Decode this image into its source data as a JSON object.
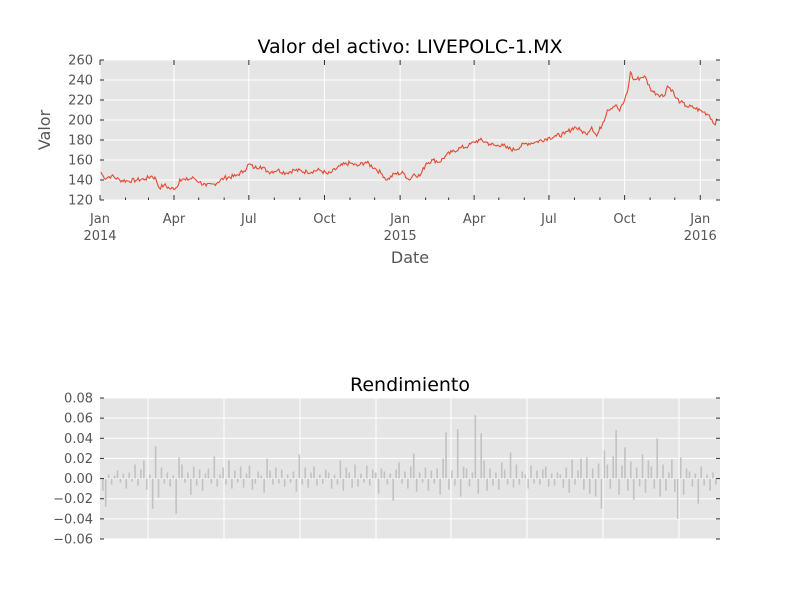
{
  "colors": {
    "plot_background": "#e5e5e5",
    "grid": "#ffffff",
    "price_line": "#e24a33",
    "returns_bar": "#c2c2c2",
    "tick_text": "#555555",
    "title_text": "#000000"
  },
  "chart_data": [
    {
      "type": "line",
      "title": "Valor del activo: LIVEPOLC-1.MX",
      "xlabel": "Date",
      "ylabel": "Valor",
      "xlim": [
        "2014-01-01",
        "2016-01-25"
      ],
      "ylim": [
        120,
        260
      ],
      "grid": true,
      "y_ticks": [
        "120",
        "140",
        "160",
        "180",
        "200",
        "220",
        "240",
        "260"
      ],
      "x_ticks": [
        {
          "date": "2014-01-01",
          "label": "Jan",
          "sublabel": "2014"
        },
        {
          "date": "2014-04-01",
          "label": "Apr",
          "sublabel": ""
        },
        {
          "date": "2014-07-01",
          "label": "Jul",
          "sublabel": ""
        },
        {
          "date": "2014-10-01",
          "label": "Oct",
          "sublabel": ""
        },
        {
          "date": "2015-01-01",
          "label": "Jan",
          "sublabel": "2015"
        },
        {
          "date": "2015-04-01",
          "label": "Apr",
          "sublabel": ""
        },
        {
          "date": "2015-07-01",
          "label": "Jul",
          "sublabel": ""
        },
        {
          "date": "2015-10-01",
          "label": "Oct",
          "sublabel": ""
        },
        {
          "date": "2016-01-01",
          "label": "Jan",
          "sublabel": "2016"
        }
      ],
      "series": [
        {
          "name": "",
          "points": [
            [
              "2014-01-02",
              148
            ],
            [
              "2014-01-06",
              142
            ],
            [
              "2014-01-15",
              144
            ],
            [
              "2014-01-25",
              140
            ],
            [
              "2014-02-05",
              139
            ],
            [
              "2014-02-15",
              140
            ],
            [
              "2014-02-25",
              141
            ],
            [
              "2014-03-05",
              144
            ],
            [
              "2014-03-10",
              141
            ],
            [
              "2014-03-14",
              132
            ],
            [
              "2014-03-20",
              135
            ],
            [
              "2014-03-28",
              131
            ],
            [
              "2014-04-05",
              133
            ],
            [
              "2014-04-08",
              141
            ],
            [
              "2014-04-15",
              140
            ],
            [
              "2014-04-25",
              142
            ],
            [
              "2014-05-02",
              138
            ],
            [
              "2014-05-10",
              134
            ],
            [
              "2014-05-20",
              136
            ],
            [
              "2014-06-01",
              142
            ],
            [
              "2014-06-15",
              144
            ],
            [
              "2014-06-25",
              149
            ],
            [
              "2014-07-01",
              156
            ],
            [
              "2014-07-08",
              152
            ],
            [
              "2014-07-15",
              154
            ],
            [
              "2014-07-25",
              148
            ],
            [
              "2014-08-05",
              150
            ],
            [
              "2014-08-15",
              147
            ],
            [
              "2014-08-25",
              150
            ],
            [
              "2014-09-10",
              148
            ],
            [
              "2014-09-25",
              150
            ],
            [
              "2014-10-05",
              146
            ],
            [
              "2014-10-10",
              148
            ],
            [
              "2014-10-20",
              154
            ],
            [
              "2014-11-01",
              157
            ],
            [
              "2014-11-10",
              154
            ],
            [
              "2014-11-20",
              158
            ],
            [
              "2014-12-01",
              152
            ],
            [
              "2014-12-10",
              146
            ],
            [
              "2014-12-16",
              140
            ],
            [
              "2014-12-25",
              146
            ],
            [
              "2015-01-05",
              147
            ],
            [
              "2015-01-12",
              140
            ],
            [
              "2015-01-18",
              146
            ],
            [
              "2015-01-25",
              144
            ],
            [
              "2015-02-02",
              157
            ],
            [
              "2015-02-10",
              160
            ],
            [
              "2015-02-18",
              158
            ],
            [
              "2015-02-25",
              164
            ],
            [
              "2015-03-05",
              168
            ],
            [
              "2015-03-15",
              172
            ],
            [
              "2015-03-25",
              174
            ],
            [
              "2015-04-01",
              178
            ],
            [
              "2015-04-08",
              180
            ],
            [
              "2015-04-15",
              178
            ],
            [
              "2015-04-20",
              176
            ],
            [
              "2015-04-28",
              174
            ],
            [
              "2015-05-05",
              176
            ],
            [
              "2015-05-10",
              172
            ],
            [
              "2015-05-20",
              170
            ],
            [
              "2015-06-01",
              176
            ],
            [
              "2015-06-15",
              178
            ],
            [
              "2015-06-30",
              182
            ],
            [
              "2015-07-10",
              184
            ],
            [
              "2015-07-20",
              186
            ],
            [
              "2015-08-01",
              193
            ],
            [
              "2015-08-08",
              190
            ],
            [
              "2015-08-15",
              186
            ],
            [
              "2015-08-22",
              193
            ],
            [
              "2015-08-28",
              184
            ],
            [
              "2015-09-05",
              198
            ],
            [
              "2015-09-10",
              210
            ],
            [
              "2015-09-20",
              215
            ],
            [
              "2015-09-25",
              209
            ],
            [
              "2015-10-01",
              220
            ],
            [
              "2015-10-05",
              230
            ],
            [
              "2015-10-08",
              248
            ],
            [
              "2015-10-12",
              240
            ],
            [
              "2015-10-20",
              242
            ],
            [
              "2015-10-25",
              244
            ],
            [
              "2015-11-01",
              232
            ],
            [
              "2015-11-05",
              228
            ],
            [
              "2015-11-10",
              226
            ],
            [
              "2015-11-18",
              224
            ],
            [
              "2015-11-22",
              234
            ],
            [
              "2015-11-28",
              230
            ],
            [
              "2015-12-02",
              222
            ],
            [
              "2015-12-08",
              218
            ],
            [
              "2015-12-15",
              214
            ],
            [
              "2015-12-25",
              212
            ],
            [
              "2016-01-05",
              208
            ],
            [
              "2016-01-12",
              205
            ],
            [
              "2016-01-18",
              196
            ],
            [
              "2016-01-22",
              200
            ]
          ]
        }
      ]
    },
    {
      "type": "bar",
      "title": "Rendimiento",
      "xlabel": "",
      "ylabel": "",
      "xlim": [
        "2014-01-01",
        "2016-01-25"
      ],
      "ylim": [
        -0.06,
        0.08
      ],
      "grid": true,
      "y_ticks": [
        "−0.06",
        "−0.04",
        "−0.02",
        "0.00",
        "0.02",
        "0.04",
        "0.06",
        "0.08"
      ],
      "x_ticks": [],
      "values": [
        -0.012,
        -0.028,
        0.004,
        -0.006,
        0.003,
        0.008,
        -0.004,
        0.005,
        -0.01,
        0.006,
        -0.003,
        0.014,
        -0.007,
        0.009,
        0.018,
        -0.011,
        0.004,
        -0.03,
        0.032,
        -0.019,
        0.011,
        -0.005,
        0.006,
        -0.008,
        0.003,
        -0.035,
        0.021,
        0.014,
        -0.004,
        0.006,
        -0.016,
        0.012,
        -0.007,
        0.009,
        -0.012,
        0.005,
        0.01,
        -0.005,
        0.022,
        -0.008,
        0.004,
        0.011,
        -0.006,
        0.018,
        -0.01,
        0.008,
        -0.004,
        0.012,
        -0.009,
        0.005,
        0.013,
        -0.011,
        -0.005,
        0.007,
        0.003,
        -0.014,
        0.02,
        0.008,
        -0.006,
        0.011,
        -0.005,
        0.009,
        -0.008,
        0.004,
        -0.004,
        0.007,
        -0.013,
        0.024,
        -0.006,
        0.011,
        -0.009,
        0.006,
        0.012,
        -0.007,
        0.004,
        -0.005,
        0.009,
        0.006,
        -0.01,
        0.004,
        -0.006,
        0.018,
        -0.012,
        0.011,
        0.006,
        -0.009,
        0.014,
        -0.008,
        0.005,
        -0.004,
        0.013,
        -0.007,
        0.009,
        0.006,
        -0.015,
        0.01,
        0.007,
        -0.006,
        0.005,
        -0.022,
        0.009,
        0.016,
        -0.005,
        0.007,
        -0.01,
        0.012,
        0.025,
        -0.013,
        0.006,
        -0.004,
        0.011,
        -0.012,
        0.008,
        -0.005,
        0.01,
        -0.016,
        0.02,
        0.046,
        -0.011,
        0.008,
        -0.007,
        0.049,
        -0.018,
        0.012,
        0.01,
        -0.008,
        0.006,
        0.063,
        -0.015,
        0.045,
        0.018,
        -0.012,
        0.01,
        -0.007,
        0.006,
        -0.011,
        0.016,
        0.009,
        -0.006,
        0.026,
        -0.009,
        0.014,
        -0.006,
        0.007,
        0.004,
        -0.01,
        0.013,
        -0.005,
        0.008,
        -0.006,
        0.009,
        0.012,
        -0.008,
        0.005,
        -0.007,
        0.006,
        0.004,
        -0.009,
        0.011,
        -0.014,
        0.019,
        -0.006,
        0.008,
        0.02,
        -0.011,
        0.021,
        -0.015,
        0.01,
        -0.018,
        0.015,
        -0.03,
        0.028,
        0.014,
        -0.01,
        0.022,
        0.048,
        -0.016,
        0.013,
        0.031,
        -0.012,
        0.017,
        -0.021,
        0.011,
        -0.008,
        0.024,
        -0.014,
        0.018,
        0.012,
        -0.01,
        0.04,
        -0.018,
        0.014,
        -0.012,
        0.006,
        0.019,
        -0.013,
        -0.04,
        0.021,
        -0.016,
        0.01,
        0.007,
        -0.008,
        0.005,
        -0.025,
        0.012,
        -0.007,
        0.004,
        -0.012,
        0.006,
        -0.006
      ]
    }
  ]
}
